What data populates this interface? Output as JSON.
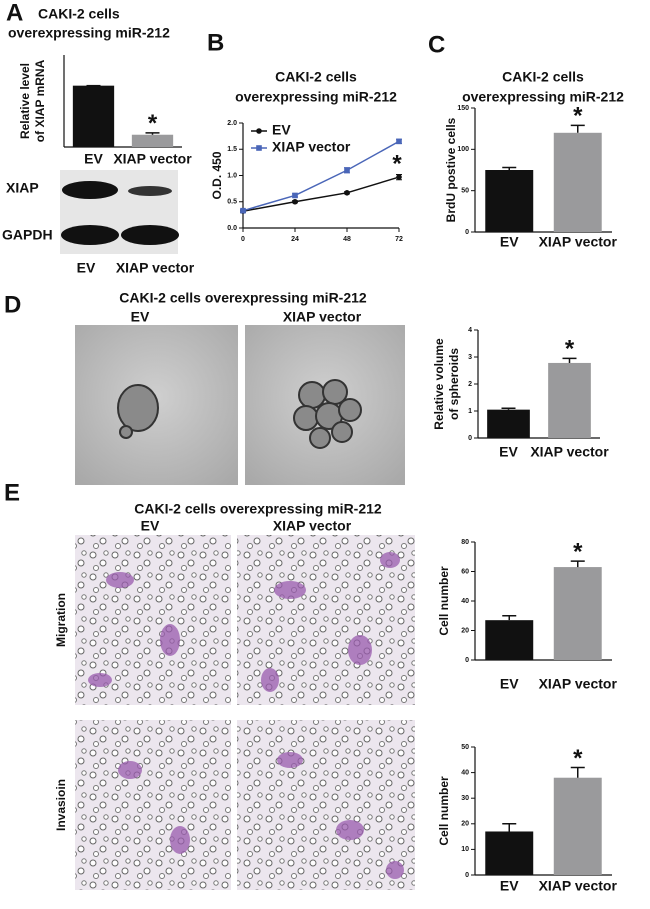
{
  "panels": {
    "A": {
      "label": "A",
      "title": [
        "CAKI-2 cells",
        "overexpressing miR-212"
      ],
      "blot_rows": [
        "XIAP",
        "GAPDH"
      ],
      "blot_lanes": [
        "EV",
        "XIAP vector"
      ]
    },
    "B": {
      "label": "B"
    },
    "C": {
      "label": "C"
    },
    "D": {
      "label": "D",
      "title": "CAKI-2 cells overexpressing miR-212",
      "images": [
        "EV",
        "XIAP vector"
      ]
    },
    "E": {
      "label": "E",
      "title": "CAKI-2 cells overexpressing miR-212",
      "images": [
        "EV",
        "XIAP vector"
      ],
      "rows": [
        "Migration",
        "Invasioin"
      ]
    }
  },
  "chart_data": [
    {
      "type": "bar",
      "y_label": [
        "Relative level",
        "of XIAP mRNA"
      ],
      "categories": [
        "EV",
        "XIAP vector"
      ],
      "values": [
        1,
        0.2
      ],
      "errors": [
        0,
        0.03
      ],
      "colors": [
        "#111111",
        "#9a9a9c"
      ],
      "ylim": [
        0,
        1.5
      ],
      "annotation": "*"
    },
    {
      "type": "line",
      "title": [
        "CAKI-2 cells",
        "overexpressing miR-212"
      ],
      "y_label": "O.D. 450",
      "x": [
        0,
        24,
        48,
        72
      ],
      "xlim": [
        0,
        72
      ],
      "xticks": [
        0,
        24,
        48,
        72
      ],
      "ylim": [
        0,
        2
      ],
      "yticks": [
        {
          "value": 0,
          "label": "0.0"
        },
        {
          "value": 0.5,
          "label": "0.5"
        },
        {
          "value": 1,
          "label": "1.0"
        },
        {
          "value": 1.5,
          "label": "1.5"
        },
        {
          "value": 2,
          "label": "2.0"
        }
      ],
      "legend": "upper left",
      "annotation": "*",
      "series": [
        {
          "name": "EV",
          "color": "#111111",
          "values": [
            0.32,
            0.5,
            0.67,
            0.97
          ],
          "errors": [
            0.02,
            0.02,
            0.02,
            0.05
          ]
        },
        {
          "name": "XIAP vector",
          "color": "#4a66b8",
          "values": [
            0.33,
            0.62,
            1.1,
            1.65
          ],
          "errors": [
            0.02,
            0.03,
            0.05,
            0.04
          ]
        }
      ]
    },
    {
      "type": "bar",
      "title": [
        "CAKI-2 cells",
        "overexpressing miR-212"
      ],
      "y_label": [
        "BrdU postive cells"
      ],
      "categories": [
        "EV",
        "XIAP vector"
      ],
      "values": [
        75,
        120
      ],
      "errors": [
        3,
        9
      ],
      "colors": [
        "#111111",
        "#9a9a9c"
      ],
      "ylim": [
        0,
        150
      ],
      "yticks": [
        0,
        50,
        100,
        150
      ],
      "annotation": "*"
    },
    {
      "type": "bar",
      "y_label": [
        "Relative volume",
        "of spheroids"
      ],
      "categories": [
        "EV",
        "XIAP vector"
      ],
      "values": [
        1.05,
        2.78
      ],
      "errors": [
        0.05,
        0.17
      ],
      "colors": [
        "#111111",
        "#9a9a9c"
      ],
      "ylim": [
        0,
        4
      ],
      "yticks": [
        0,
        1,
        2,
        3,
        4
      ],
      "annotation": "*"
    },
    {
      "type": "bar",
      "y_label": [
        "Cell number"
      ],
      "categories": [
        "EV",
        "XIAP vector"
      ],
      "values": [
        27,
        63
      ],
      "errors": [
        3,
        4
      ],
      "colors": [
        "#111111",
        "#9a9a9c"
      ],
      "ylim": [
        0,
        80
      ],
      "yticks": [
        0,
        20,
        40,
        60,
        80
      ],
      "annotation": "*"
    },
    {
      "type": "bar",
      "y_label": [
        "Cell number"
      ],
      "categories": [
        "EV",
        "XIAP vector"
      ],
      "values": [
        17,
        38
      ],
      "errors": [
        3,
        4
      ],
      "colors": [
        "#111111",
        "#9a9a9c"
      ],
      "ylim": [
        0,
        50
      ],
      "yticks": [
        0,
        10,
        20,
        30,
        40,
        50
      ],
      "annotation": "*"
    }
  ]
}
